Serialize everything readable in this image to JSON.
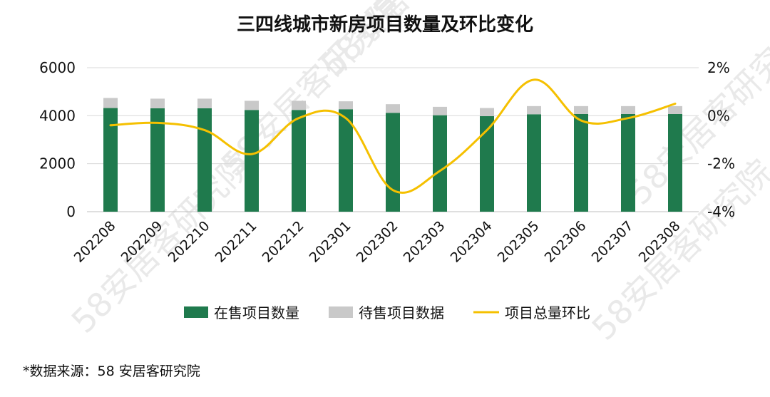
{
  "chart_data": {
    "type": "bar",
    "title": "三四线城市新房项目数量及环比变化",
    "categories": [
      "202208",
      "202209",
      "202210",
      "202211",
      "202212",
      "202301",
      "202302",
      "202303",
      "202304",
      "202305",
      "202306",
      "202307",
      "202308"
    ],
    "series": [
      {
        "name": "在售项目数量",
        "type": "bar",
        "stack": "main",
        "axis": "left",
        "color": "#1f7a4d",
        "values": [
          4320,
          4310,
          4310,
          4240,
          4240,
          4270,
          4120,
          4020,
          3980,
          4060,
          4070,
          4070,
          4070
        ]
      },
      {
        "name": "待售项目数据",
        "type": "bar",
        "stack": "main",
        "axis": "left",
        "color": "#c9c9c9",
        "values": [
          420,
          400,
          400,
          380,
          380,
          330,
          360,
          350,
          340,
          340,
          330,
          330,
          330
        ]
      },
      {
        "name": "项目总量环比",
        "type": "line",
        "axis": "right",
        "color": "#f5c000",
        "values": [
          -0.4,
          -0.3,
          -0.6,
          -1.6,
          -0.1,
          -0.1,
          -3.1,
          -2.3,
          -0.6,
          1.5,
          -0.2,
          -0.1,
          0.5
        ]
      }
    ],
    "y_left": {
      "min": 0,
      "max": 6000,
      "ticks": [
        0,
        2000,
        4000,
        6000
      ]
    },
    "y_right": {
      "min": -4,
      "max": 2,
      "ticks": [
        -4,
        -2,
        0,
        2
      ],
      "unit": "%"
    },
    "grid": true,
    "legend_position": "bottom"
  },
  "source_note": "*数据来源：58 安居客研究院",
  "watermark": "58安居客研究院"
}
